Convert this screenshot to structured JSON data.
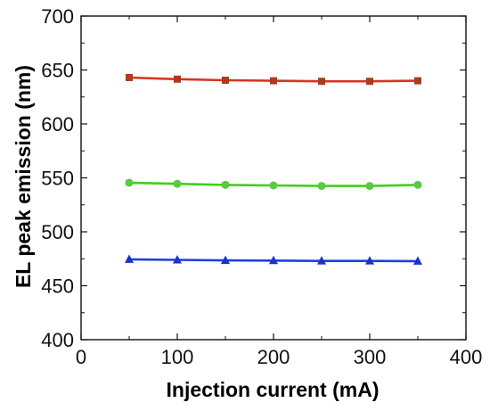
{
  "chart_data": {
    "type": "line",
    "title": "",
    "xlabel": "Injection current (mA)",
    "ylabel": "EL peak emission (nm)",
    "xlim": [
      0,
      400
    ],
    "ylim": [
      400,
      700
    ],
    "xticks": [
      0,
      100,
      200,
      300,
      400
    ],
    "yticks": [
      400,
      450,
      500,
      550,
      600,
      650,
      700
    ],
    "grid": false,
    "legend": "none",
    "x": [
      50,
      100,
      150,
      200,
      250,
      300,
      350
    ],
    "series": [
      {
        "marker": "square",
        "line_color": "#d9341f",
        "marker_color": "#b03a1a",
        "values": [
          643,
          641.5,
          640.5,
          640,
          639.5,
          639.5,
          640
        ]
      },
      {
        "marker": "circle",
        "line_color": "#3fcf1c",
        "marker_color": "#58cc3a",
        "values": [
          545.5,
          544.5,
          543.5,
          543,
          542.5,
          542.5,
          543.5
        ]
      },
      {
        "marker": "triangle",
        "line_color": "#1f3fe0",
        "marker_color": "#1b33c9",
        "values": [
          474.5,
          474,
          473.5,
          473.3,
          473,
          473,
          472.8
        ]
      }
    ]
  }
}
